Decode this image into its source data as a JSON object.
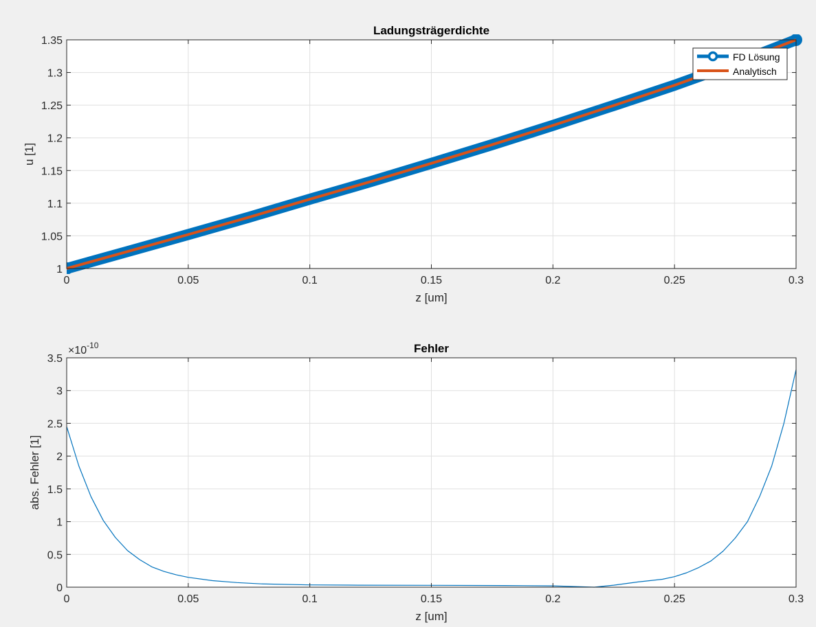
{
  "chart_data": [
    {
      "type": "line",
      "title": "Ladungsträgerdichte",
      "xlabel": "z [um]",
      "ylabel": "u [1]",
      "xlim": [
        0,
        0.3
      ],
      "ylim": [
        1,
        1.35
      ],
      "grid": true,
      "xticks": [
        0,
        0.05,
        0.1,
        0.15,
        0.2,
        0.25,
        0.3
      ],
      "xtick_labels": [
        "0",
        "0.05",
        "0.1",
        "0.15",
        "0.2",
        "0.25",
        "0.3"
      ],
      "yticks": [
        1,
        1.05,
        1.1,
        1.15,
        1.2,
        1.25,
        1.3,
        1.35
      ],
      "ytick_labels": [
        "1",
        "1.05",
        "1.1",
        "1.15",
        "1.2",
        "1.25",
        "1.3",
        "1.35"
      ],
      "legend_position": "top-right",
      "series": [
        {
          "name": "FD Lösung",
          "color": "#0072BD",
          "style": "thick-line-with-circle-markers",
          "x": [
            0,
            0.025,
            0.05,
            0.075,
            0.1,
            0.125,
            0.15,
            0.175,
            0.2,
            0.225,
            0.25,
            0.275,
            0.3
          ],
          "y": [
            1.0,
            1.026,
            1.052,
            1.0785,
            1.106,
            1.133,
            1.161,
            1.1895,
            1.219,
            1.2495,
            1.2805,
            1.314,
            1.35
          ]
        },
        {
          "name": "Analytisch",
          "color": "#D95319",
          "style": "line",
          "x": [
            0,
            0.025,
            0.05,
            0.075,
            0.1,
            0.125,
            0.15,
            0.175,
            0.2,
            0.225,
            0.25,
            0.275,
            0.3
          ],
          "y": [
            1.0,
            1.026,
            1.052,
            1.0785,
            1.106,
            1.133,
            1.161,
            1.1895,
            1.219,
            1.2495,
            1.2805,
            1.314,
            1.35
          ]
        }
      ]
    },
    {
      "type": "line",
      "title": "Fehler",
      "xlabel": "z [um]",
      "ylabel": "abs. Fehler [1]",
      "xlim": [
        0,
        0.3
      ],
      "ylim": [
        0,
        3.5
      ],
      "y_exponent_base": "×10",
      "y_exponent_power": "-10",
      "grid": true,
      "xticks": [
        0,
        0.05,
        0.1,
        0.15,
        0.2,
        0.25,
        0.3
      ],
      "xtick_labels": [
        "0",
        "0.05",
        "0.1",
        "0.15",
        "0.2",
        "0.25",
        "0.3"
      ],
      "yticks": [
        0,
        0.5,
        1,
        1.5,
        2,
        2.5,
        3,
        3.5
      ],
      "ytick_labels": [
        "0",
        "0.5",
        "1",
        "1.5",
        "2",
        "2.5",
        "3",
        "3.5"
      ],
      "series": [
        {
          "name": "abs. Fehler",
          "color": "#0072BD",
          "x": [
            0,
            0.005,
            0.01,
            0.015,
            0.02,
            0.025,
            0.03,
            0.035,
            0.04,
            0.045,
            0.05,
            0.06,
            0.07,
            0.08,
            0.1,
            0.12,
            0.15,
            0.18,
            0.2,
            0.21,
            0.217,
            0.225,
            0.235,
            0.245,
            0.25,
            0.255,
            0.26,
            0.265,
            0.27,
            0.275,
            0.28,
            0.285,
            0.29,
            0.295,
            0.3
          ],
          "y": [
            2.45,
            1.85,
            1.38,
            1.02,
            0.76,
            0.56,
            0.42,
            0.31,
            0.24,
            0.19,
            0.15,
            0.1,
            0.07,
            0.05,
            0.035,
            0.03,
            0.028,
            0.025,
            0.02,
            0.008,
            0.0,
            0.03,
            0.08,
            0.12,
            0.16,
            0.22,
            0.3,
            0.4,
            0.55,
            0.75,
            1.0,
            1.38,
            1.85,
            2.5,
            3.32
          ]
        }
      ]
    }
  ]
}
